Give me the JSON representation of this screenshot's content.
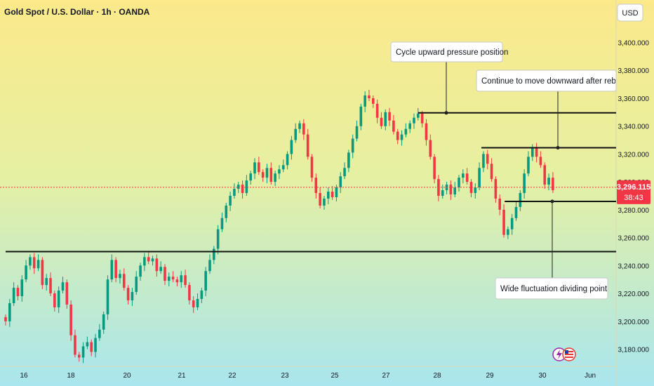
{
  "header": {
    "title": "Gold Spot / U.S. Dollar · 1h · OANDA",
    "currency": "USD"
  },
  "colors": {
    "bg_top": "#fbe98a",
    "bg_bottom": "#a9e6ee",
    "up": "#089981",
    "down": "#f23645",
    "level_line": "#111111",
    "price_line": "#f23645"
  },
  "chart_data": {
    "type": "candlestick",
    "title": "Gold Spot / U.S. Dollar · 1h · OANDA",
    "y_axis": {
      "min": 3168,
      "max": 3412,
      "ticks": [
        3400,
        3380,
        3360,
        3340,
        3320,
        3300,
        3280,
        3260,
        3240,
        3220,
        3200,
        3180
      ],
      "tick_labels": [
        "3,400.000",
        "3,380.000",
        "3,360.000",
        "3,340.000",
        "3,320.000",
        "3,300.000",
        "3,280.000",
        "3,260.000",
        "3,240.000",
        "3,220.000",
        "3,200.000",
        "3,180.000"
      ]
    },
    "x_axis": {
      "labels": [
        "16",
        "18",
        "20",
        "21",
        "22",
        "23",
        "25",
        "27",
        "28",
        "29",
        "30",
        "Jun"
      ]
    },
    "grid": false,
    "last_price": 3296.115,
    "last_price_label": "3,296.115",
    "countdown": "38:43",
    "candles": [
      [
        0,
        3203,
        3200
      ],
      [
        1,
        3200,
        3213
      ],
      [
        2,
        3213,
        3224
      ],
      [
        3,
        3224,
        3218
      ],
      [
        4,
        3218,
        3230
      ],
      [
        5,
        3230,
        3240
      ],
      [
        6,
        3240,
        3246
      ],
      [
        7,
        3246,
        3238
      ],
      [
        8,
        3238,
        3244
      ],
      [
        9,
        3244,
        3226
      ],
      [
        10,
        3226,
        3231
      ],
      [
        11,
        3231,
        3220
      ],
      [
        12,
        3220,
        3210
      ],
      [
        13,
        3210,
        3222
      ],
      [
        14,
        3222,
        3228
      ],
      [
        15,
        3228,
        3212
      ],
      [
        16,
        3212,
        3190
      ],
      [
        17,
        3190,
        3176
      ],
      [
        18,
        3176,
        3174
      ],
      [
        19,
        3174,
        3182
      ],
      [
        20,
        3182,
        3185
      ],
      [
        21,
        3185,
        3178
      ],
      [
        22,
        3178,
        3188
      ],
      [
        23,
        3188,
        3194
      ],
      [
        24,
        3194,
        3205
      ],
      [
        25,
        3205,
        3230
      ],
      [
        26,
        3230,
        3244
      ],
      [
        27,
        3244,
        3231
      ],
      [
        28,
        3231,
        3234
      ],
      [
        29,
        3234,
        3224
      ],
      [
        30,
        3224,
        3215
      ],
      [
        31,
        3215,
        3221
      ],
      [
        32,
        3221,
        3232
      ],
      [
        33,
        3232,
        3240
      ],
      [
        34,
        3240,
        3246
      ],
      [
        35,
        3246,
        3243
      ],
      [
        36,
        3243,
        3245
      ],
      [
        37,
        3245,
        3236
      ],
      [
        38,
        3236,
        3239
      ],
      [
        39,
        3239,
        3229
      ],
      [
        40,
        3229,
        3232
      ],
      [
        41,
        3232,
        3230
      ],
      [
        42,
        3230,
        3228
      ],
      [
        43,
        3228,
        3233
      ],
      [
        44,
        3233,
        3226
      ],
      [
        45,
        3226,
        3215
      ],
      [
        46,
        3215,
        3210
      ],
      [
        47,
        3210,
        3216
      ],
      [
        48,
        3216,
        3222
      ],
      [
        49,
        3222,
        3236
      ],
      [
        50,
        3236,
        3244
      ],
      [
        51,
        3244,
        3252
      ],
      [
        52,
        3252,
        3266
      ],
      [
        53,
        3266,
        3274
      ],
      [
        54,
        3274,
        3283
      ],
      [
        55,
        3283,
        3290
      ],
      [
        56,
        3290,
        3295
      ],
      [
        57,
        3295,
        3298
      ],
      [
        58,
        3298,
        3292
      ],
      [
        59,
        3292,
        3301
      ],
      [
        60,
        3301,
        3306
      ],
      [
        61,
        3306,
        3314
      ],
      [
        62,
        3314,
        3307
      ],
      [
        63,
        3307,
        3303
      ],
      [
        64,
        3303,
        3310
      ],
      [
        65,
        3310,
        3300
      ],
      [
        66,
        3300,
        3306
      ],
      [
        67,
        3306,
        3309
      ],
      [
        68,
        3309,
        3312
      ],
      [
        69,
        3312,
        3320
      ],
      [
        70,
        3320,
        3330
      ],
      [
        71,
        3330,
        3338
      ],
      [
        72,
        3338,
        3342
      ],
      [
        73,
        3342,
        3334
      ],
      [
        74,
        3334,
        3318
      ],
      [
        75,
        3318,
        3303
      ],
      [
        76,
        3303,
        3292
      ],
      [
        77,
        3292,
        3283
      ],
      [
        78,
        3283,
        3288
      ],
      [
        79,
        3288,
        3293
      ],
      [
        80,
        3293,
        3289
      ],
      [
        81,
        3289,
        3296
      ],
      [
        82,
        3296,
        3304
      ],
      [
        83,
        3304,
        3310
      ],
      [
        84,
        3310,
        3321
      ],
      [
        85,
        3321,
        3331
      ],
      [
        86,
        3331,
        3340
      ],
      [
        87,
        3340,
        3354
      ],
      [
        88,
        3354,
        3362
      ],
      [
        89,
        3362,
        3360
      ],
      [
        90,
        3360,
        3356
      ],
      [
        91,
        3356,
        3346
      ],
      [
        92,
        3346,
        3340
      ],
      [
        93,
        3340,
        3350
      ],
      [
        94,
        3350,
        3344
      ],
      [
        95,
        3344,
        3336
      ],
      [
        96,
        3336,
        3330
      ],
      [
        97,
        3330,
        3334
      ],
      [
        98,
        3334,
        3338
      ],
      [
        99,
        3338,
        3342
      ],
      [
        100,
        3342,
        3346
      ],
      [
        101,
        3346,
        3349
      ],
      [
        102,
        3349,
        3342
      ],
      [
        103,
        3342,
        3330
      ],
      [
        104,
        3330,
        3318
      ],
      [
        105,
        3318,
        3302
      ],
      [
        106,
        3302,
        3290
      ],
      [
        107,
        3290,
        3294
      ],
      [
        108,
        3294,
        3298
      ],
      [
        109,
        3298,
        3291
      ],
      [
        110,
        3291,
        3296
      ],
      [
        111,
        3296,
        3303
      ],
      [
        112,
        3303,
        3306
      ],
      [
        113,
        3306,
        3300
      ],
      [
        114,
        3300,
        3292
      ],
      [
        115,
        3292,
        3296
      ],
      [
        116,
        3296,
        3310
      ],
      [
        117,
        3310,
        3320
      ],
      [
        118,
        3320,
        3313
      ],
      [
        119,
        3313,
        3302
      ],
      [
        120,
        3302,
        3288
      ],
      [
        121,
        3288,
        3280
      ],
      [
        122,
        3280,
        3262
      ],
      [
        123,
        3262,
        3266
      ],
      [
        124,
        3266,
        3274
      ],
      [
        125,
        3274,
        3282
      ],
      [
        126,
        3282,
        3292
      ],
      [
        127,
        3292,
        3306
      ],
      [
        128,
        3306,
        3318
      ],
      [
        129,
        3318,
        3325
      ],
      [
        130,
        3325,
        3318
      ],
      [
        131,
        3318,
        3312
      ],
      [
        132,
        3312,
        3298
      ],
      [
        133,
        3298,
        3303
      ],
      [
        134,
        3303,
        3294
      ]
    ],
    "levels": [
      {
        "price": 3349.5,
        "x_start": 101.0
      },
      {
        "price": 3324.5,
        "x_start": 116.5
      },
      {
        "price": 3286.0,
        "x_start": 122.2
      },
      {
        "price": 3250.0,
        "x_start": 0.0
      }
    ],
    "annotations": [
      {
        "id": "cycle",
        "text": "Cycle upward pressure position",
        "anchor_level": 0
      },
      {
        "id": "continue",
        "text": "Continue to move downward after rebound",
        "anchor_level": 1
      },
      {
        "id": "wide",
        "text": "Wide fluctuation dividing point",
        "anchor_level": 2
      }
    ]
  }
}
